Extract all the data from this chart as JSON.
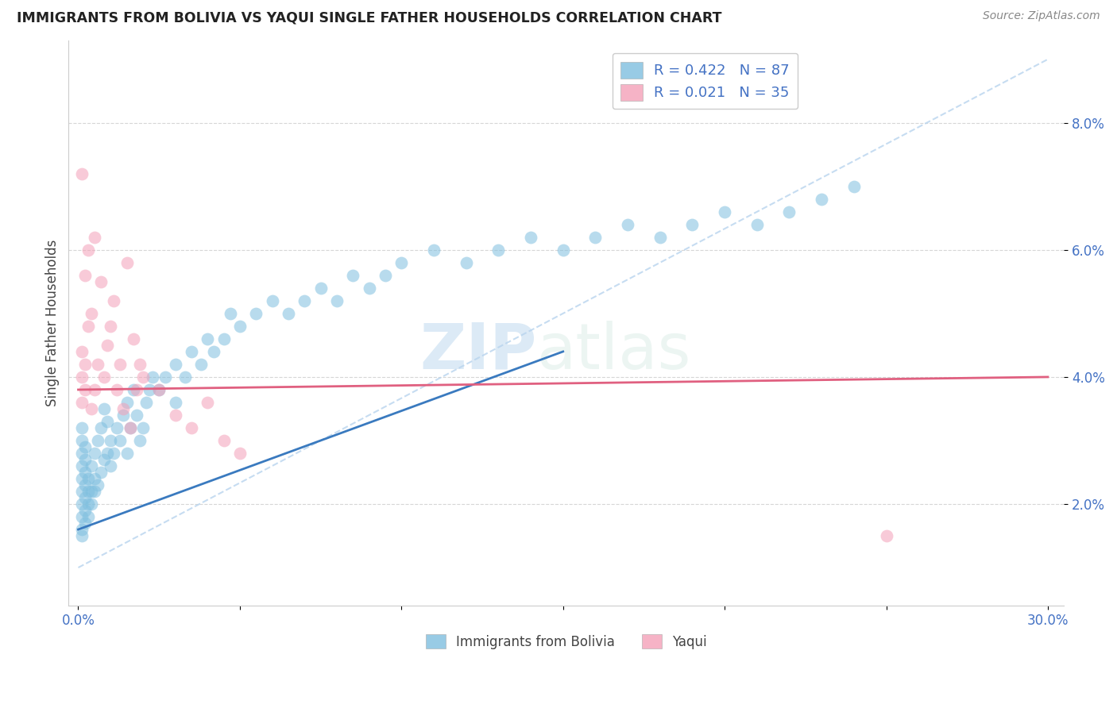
{
  "title": "IMMIGRANTS FROM BOLIVIA VS YAQUI SINGLE FATHER HOUSEHOLDS CORRELATION CHART",
  "source": "Source: ZipAtlas.com",
  "ylabel": "Single Father Households",
  "legend_label1": "Immigrants from Bolivia",
  "legend_label2": "Yaqui",
  "R1": 0.422,
  "N1": 87,
  "R2": 0.021,
  "N2": 35,
  "xlim": [
    -0.003,
    0.305
  ],
  "ylim": [
    0.004,
    0.093
  ],
  "yticks": [
    0.02,
    0.04,
    0.06,
    0.08
  ],
  "ytick_labels": [
    "2.0%",
    "4.0%",
    "6.0%",
    "8.0%"
  ],
  "xticks": [
    0.0,
    0.05,
    0.1,
    0.15,
    0.2,
    0.25,
    0.3
  ],
  "xtick_labels": [
    "0.0%",
    "",
    "",
    "",
    "",
    "",
    "30.0%"
  ],
  "color_blue": "#7fbfdf",
  "color_pink": "#f4a0b8",
  "color_blue_line": "#3a7abf",
  "color_pink_line": "#e06080",
  "color_diag": "#b8d4ee",
  "watermark_zip": "ZIP",
  "watermark_atlas": "atlas",
  "blue_x": [
    0.001,
    0.001,
    0.001,
    0.001,
    0.001,
    0.001,
    0.001,
    0.001,
    0.001,
    0.001,
    0.002,
    0.002,
    0.002,
    0.002,
    0.002,
    0.002,
    0.002,
    0.003,
    0.003,
    0.003,
    0.003,
    0.004,
    0.004,
    0.004,
    0.005,
    0.005,
    0.005,
    0.006,
    0.006,
    0.007,
    0.007,
    0.008,
    0.008,
    0.009,
    0.009,
    0.01,
    0.01,
    0.011,
    0.012,
    0.013,
    0.014,
    0.015,
    0.015,
    0.016,
    0.017,
    0.018,
    0.019,
    0.02,
    0.021,
    0.022,
    0.023,
    0.025,
    0.027,
    0.03,
    0.03,
    0.033,
    0.035,
    0.038,
    0.04,
    0.042,
    0.045,
    0.047,
    0.05,
    0.055,
    0.06,
    0.065,
    0.07,
    0.075,
    0.08,
    0.085,
    0.09,
    0.095,
    0.1,
    0.11,
    0.12,
    0.13,
    0.14,
    0.15,
    0.16,
    0.17,
    0.18,
    0.19,
    0.2,
    0.21,
    0.22,
    0.23,
    0.24
  ],
  "blue_y": [
    0.016,
    0.018,
    0.02,
    0.022,
    0.024,
    0.026,
    0.028,
    0.03,
    0.032,
    0.015,
    0.017,
    0.019,
    0.021,
    0.023,
    0.025,
    0.027,
    0.029,
    0.018,
    0.02,
    0.022,
    0.024,
    0.02,
    0.022,
    0.026,
    0.022,
    0.024,
    0.028,
    0.023,
    0.03,
    0.025,
    0.032,
    0.027,
    0.035,
    0.028,
    0.033,
    0.026,
    0.03,
    0.028,
    0.032,
    0.03,
    0.034,
    0.028,
    0.036,
    0.032,
    0.038,
    0.034,
    0.03,
    0.032,
    0.036,
    0.038,
    0.04,
    0.038,
    0.04,
    0.036,
    0.042,
    0.04,
    0.044,
    0.042,
    0.046,
    0.044,
    0.046,
    0.05,
    0.048,
    0.05,
    0.052,
    0.05,
    0.052,
    0.054,
    0.052,
    0.056,
    0.054,
    0.056,
    0.058,
    0.06,
    0.058,
    0.06,
    0.062,
    0.06,
    0.062,
    0.064,
    0.062,
    0.064,
    0.066,
    0.064,
    0.066,
    0.068,
    0.07
  ],
  "pink_x": [
    0.001,
    0.001,
    0.001,
    0.001,
    0.002,
    0.002,
    0.002,
    0.003,
    0.003,
    0.004,
    0.004,
    0.005,
    0.005,
    0.006,
    0.007,
    0.008,
    0.009,
    0.01,
    0.011,
    0.012,
    0.013,
    0.014,
    0.015,
    0.016,
    0.017,
    0.018,
    0.019,
    0.02,
    0.025,
    0.03,
    0.035,
    0.04,
    0.045,
    0.05,
    0.25
  ],
  "pink_y": [
    0.036,
    0.04,
    0.044,
    0.072,
    0.038,
    0.042,
    0.056,
    0.048,
    0.06,
    0.035,
    0.05,
    0.038,
    0.062,
    0.042,
    0.055,
    0.04,
    0.045,
    0.048,
    0.052,
    0.038,
    0.042,
    0.035,
    0.058,
    0.032,
    0.046,
    0.038,
    0.042,
    0.04,
    0.038,
    0.034,
    0.032,
    0.036,
    0.03,
    0.028,
    0.015
  ],
  "blue_line_x": [
    0.0,
    0.15
  ],
  "blue_line_y": [
    0.016,
    0.044
  ],
  "pink_line_x": [
    0.0,
    0.3
  ],
  "pink_line_y": [
    0.038,
    0.04
  ],
  "diag_line_x": [
    0.0,
    0.3
  ],
  "diag_line_y": [
    0.01,
    0.09
  ]
}
